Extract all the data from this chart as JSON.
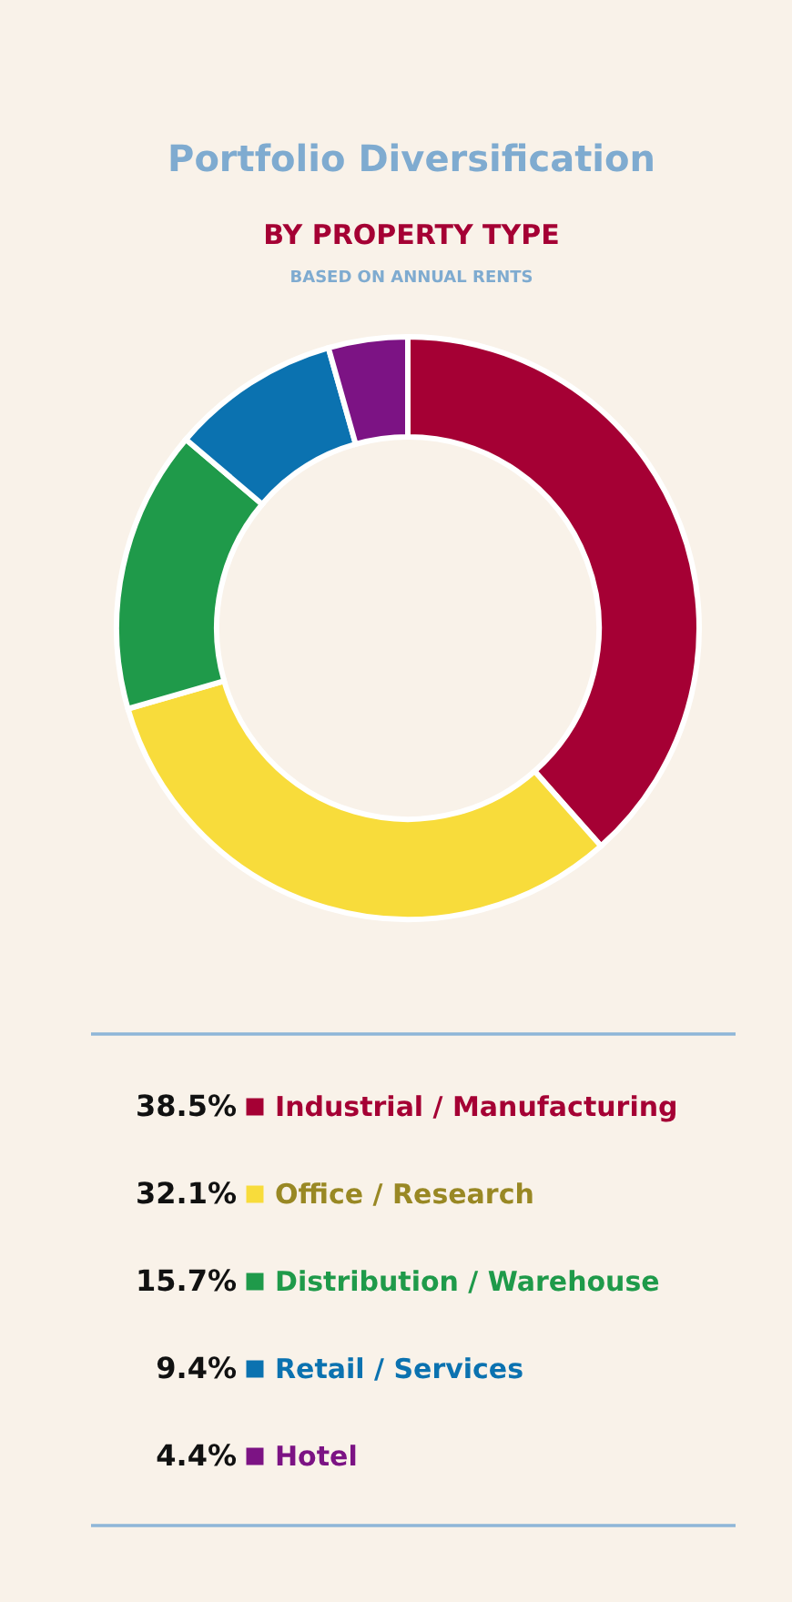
{
  "chart_data": {
    "type": "donut",
    "title": "Portfolio Diversification",
    "subtitle": "BY PROPERTY TYPE",
    "annotations": [
      "BASED ON ANNUAL RENTS"
    ],
    "categories": [
      "Industrial / Manufacturing",
      "Office / Research",
      "Distribution / Warehouse",
      "Retail / Services",
      "Hotel"
    ],
    "values": [
      38.5,
      32.1,
      15.7,
      9.4,
      4.4
    ],
    "value_labels": [
      "38.5%",
      "32.1%",
      "15.7%",
      "9.4%",
      "4.4%"
    ],
    "colors": [
      "#a50034",
      "#f8dc3b",
      "#1f9a4a",
      "#0b72b0",
      "#7c1384"
    ],
    "legend": "bottom"
  }
}
